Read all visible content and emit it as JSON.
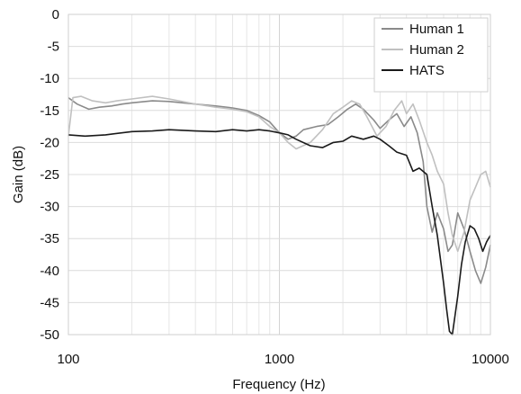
{
  "chart_data": {
    "type": "line",
    "xlabel": "Frequency (Hz)",
    "ylabel": "Gain (dB)",
    "xscale": "log",
    "xlim": [
      100,
      10000
    ],
    "ylim": [
      -50,
      0
    ],
    "xticks": [
      100,
      1000,
      10000
    ],
    "xtick_labels": [
      "100",
      "1000",
      "10000"
    ],
    "yticks": [
      0,
      -5,
      -10,
      -15,
      -20,
      -25,
      -30,
      -35,
      -40,
      -45,
      -50
    ],
    "ytick_labels": [
      "0",
      "-5",
      "-10",
      "-15",
      "-20",
      "-25",
      "-30",
      "-35",
      "-40",
      "-45",
      "-50"
    ],
    "grid": true,
    "legend_position": "top-right",
    "series": [
      {
        "name": "Human 1",
        "color": "#8a8a8a",
        "x": [
          100,
          110,
          125,
          140,
          160,
          180,
          200,
          250,
          300,
          400,
          500,
          600,
          700,
          800,
          900,
          1000,
          1100,
          1200,
          1300,
          1500,
          1700,
          1900,
          2100,
          2300,
          2500,
          2800,
          3000,
          3300,
          3600,
          3900,
          4200,
          4500,
          4800,
          5000,
          5300,
          5600,
          6000,
          6300,
          6600,
          7000,
          7500,
          8000,
          8500,
          9000,
          9500,
          10000
        ],
        "y": [
          -13.0,
          -14.0,
          -14.8,
          -14.5,
          -14.3,
          -14.0,
          -13.8,
          -13.5,
          -13.6,
          -14.0,
          -14.3,
          -14.6,
          -15.0,
          -15.8,
          -16.8,
          -18.5,
          -19.5,
          -19.0,
          -18.0,
          -17.5,
          -17.2,
          -16.0,
          -14.8,
          -14.0,
          -14.8,
          -16.5,
          -17.8,
          -16.5,
          -15.5,
          -17.5,
          -16.0,
          -18.5,
          -23.0,
          -30.0,
          -34.0,
          -31.0,
          -33.5,
          -37.0,
          -36.0,
          -31.0,
          -33.5,
          -37.0,
          -40.0,
          -42.0,
          -39.5,
          -36.0
        ]
      },
      {
        "name": "Human 2",
        "color": "#c0c0c0",
        "x": [
          100,
          105,
          115,
          130,
          150,
          170,
          200,
          250,
          300,
          400,
          500,
          600,
          700,
          800,
          900,
          1000,
          1100,
          1200,
          1400,
          1600,
          1800,
          2000,
          2200,
          2400,
          2600,
          2900,
          3200,
          3500,
          3800,
          4000,
          4300,
          4600,
          5000,
          5300,
          5600,
          6000,
          6300,
          6600,
          7000,
          7500,
          8000,
          8500,
          9000,
          9500,
          10000
        ],
        "y": [
          -19.0,
          -13.0,
          -12.8,
          -13.5,
          -13.8,
          -13.5,
          -13.2,
          -12.8,
          -13.2,
          -14.0,
          -14.5,
          -14.8,
          -15.2,
          -16.0,
          -17.5,
          -18.5,
          -20.0,
          -21.0,
          -20.0,
          -18.0,
          -15.5,
          -14.5,
          -13.5,
          -14.0,
          -16.0,
          -19.0,
          -17.5,
          -15.0,
          -13.5,
          -15.5,
          -14.0,
          -16.5,
          -20.0,
          -22.0,
          -24.5,
          -26.5,
          -31.0,
          -34.5,
          -37.0,
          -34.0,
          -29.0,
          -27.0,
          -25.0,
          -24.5,
          -27.0
        ]
      },
      {
        "name": "HATS",
        "color": "#1a1a1a",
        "x": [
          100,
          120,
          150,
          200,
          250,
          300,
          400,
          500,
          600,
          700,
          800,
          900,
          1000,
          1100,
          1200,
          1400,
          1600,
          1800,
          2000,
          2200,
          2500,
          2800,
          3000,
          3300,
          3600,
          4000,
          4300,
          4600,
          5000,
          5300,
          5600,
          6000,
          6200,
          6400,
          6600,
          6800,
          7000,
          7300,
          7600,
          8000,
          8400,
          8800,
          9200,
          9600,
          10000
        ],
        "y": [
          -18.8,
          -19.0,
          -18.8,
          -18.3,
          -18.2,
          -18.0,
          -18.2,
          -18.3,
          -18.0,
          -18.2,
          -18.0,
          -18.2,
          -18.5,
          -18.8,
          -19.5,
          -20.5,
          -20.8,
          -20.0,
          -19.8,
          -19.0,
          -19.5,
          -19.0,
          -19.5,
          -20.5,
          -21.5,
          -22.0,
          -24.5,
          -24.0,
          -25.0,
          -30.0,
          -34.5,
          -42.0,
          -46.0,
          -49.5,
          -51.0,
          -47.0,
          -44.0,
          -39.0,
          -35.5,
          -33.0,
          -33.5,
          -35.0,
          -37.0,
          -35.5,
          -34.5
        ]
      }
    ]
  }
}
